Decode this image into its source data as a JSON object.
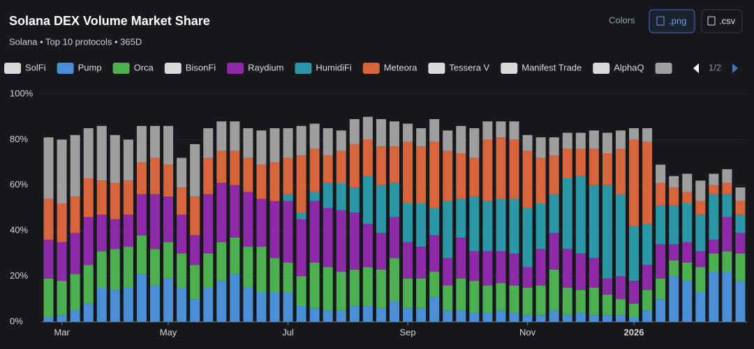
{
  "chart_data": {
    "type": "stacked_bar",
    "title": "Solana DEX Volume Market Share",
    "subtitle": "Solana • Top 10 protocols • 365D",
    "buttons": [
      "Colors",
      ".png",
      ".csv"
    ],
    "legend_page": "1/2",
    "categories": [
      null,
      "Mar",
      null,
      null,
      null,
      null,
      null,
      null,
      null,
      "May",
      null,
      null,
      null,
      null,
      null,
      null,
      null,
      null,
      "Jul",
      null,
      null,
      null,
      null,
      null,
      null,
      null,
      null,
      "Sep",
      null,
      null,
      null,
      null,
      null,
      null,
      null,
      null,
      "Nov",
      null,
      null,
      null,
      null,
      null,
      null,
      null,
      "2026",
      null,
      null,
      null,
      null,
      null,
      null,
      null,
      null
    ],
    "ylim": [
      0,
      100
    ],
    "yticks": [
      {
        "value": 0,
        "label": "0%"
      },
      {
        "value": 20,
        "label": "20%"
      },
      {
        "value": 40,
        "label": "40%"
      },
      {
        "value": 60,
        "label": "60%"
      },
      {
        "value": 80,
        "label": "80%"
      },
      {
        "value": 100,
        "label": "100%"
      }
    ],
    "grid": true,
    "series": [
      {
        "name": "SolFi",
        "color": "#d9d9d9",
        "visible": false
      },
      {
        "name": "Pump",
        "color": "#4a8fd6",
        "visible": true,
        "values": [
          2,
          3,
          5,
          8,
          15,
          14,
          15,
          21,
          16,
          19,
          15,
          10,
          15,
          18,
          21,
          15,
          13,
          13,
          13,
          7,
          6,
          5,
          5,
          7,
          7,
          6,
          9,
          6,
          6,
          11,
          5,
          5,
          4,
          4,
          5,
          4,
          3,
          3,
          5,
          3,
          4,
          3,
          3,
          3,
          2,
          5,
          10,
          20,
          18,
          13,
          22,
          22,
          18
        ]
      },
      {
        "name": "Orca",
        "color": "#4caf50",
        "visible": true,
        "values": [
          17,
          15,
          16,
          17,
          16,
          18,
          18,
          17,
          16,
          16,
          15,
          15,
          15,
          17,
          16,
          18,
          20,
          15,
          13,
          13,
          20,
          19,
          17,
          16,
          17,
          17,
          19,
          13,
          13,
          11,
          11,
          14,
          14,
          12,
          12,
          12,
          12,
          13,
          18,
          12,
          10,
          12,
          9,
          7,
          6,
          9,
          9,
          7,
          8,
          11,
          8,
          9,
          12
        ]
      },
      {
        "name": "BisonFi",
        "color": "#d9d9d9",
        "visible": false
      },
      {
        "name": "Raydium",
        "color": "#8e2aa8",
        "visible": true,
        "values": [
          17,
          17,
          18,
          21,
          16,
          13,
          14,
          18,
          24,
          20,
          17,
          13,
          26,
          26,
          23,
          24,
          21,
          25,
          27,
          25,
          27,
          26,
          27,
          25,
          19,
          16,
          18,
          16,
          14,
          16,
          12,
          18,
          13,
          15,
          14,
          14,
          9,
          16,
          16,
          17,
          16,
          13,
          7,
          10,
          10,
          11,
          15,
          7,
          9,
          7,
          6,
          15,
          9
        ]
      },
      {
        "name": "HumidiFi",
        "color": "#2a96a6",
        "visible": true,
        "values": [
          0,
          0,
          0,
          0,
          0,
          0,
          0,
          0,
          0,
          0,
          0,
          0,
          0,
          0,
          0,
          0,
          0,
          0,
          3,
          3,
          4,
          11,
          12,
          11,
          21,
          21,
          15,
          17,
          19,
          12,
          25,
          17,
          24,
          22,
          23,
          24,
          26,
          20,
          17,
          31,
          34,
          32,
          41,
          36,
          24,
          18,
          17,
          17,
          17,
          16,
          20,
          10,
          8
        ]
      },
      {
        "name": "Meteora",
        "color": "#d8643c",
        "visible": true,
        "values": [
          18,
          17,
          16,
          17,
          15,
          16,
          15,
          14,
          16,
          14,
          12,
          17,
          16,
          14,
          15,
          15,
          15,
          17,
          16,
          25,
          19,
          12,
          14,
          19,
          16,
          17,
          16,
          27,
          25,
          29,
          22,
          20,
          17,
          27,
          27,
          26,
          25,
          20,
          17,
          13,
          12,
          16,
          14,
          20,
          38,
          36,
          10,
          8,
          5,
          6,
          4,
          5,
          6
        ]
      },
      {
        "name": "Tessera V",
        "color": "#d9d9d9",
        "visible": false
      },
      {
        "name": "Manifest Trade",
        "color": "#d9d9d9",
        "visible": false
      },
      {
        "name": "AlphaQ",
        "color": "#d9d9d9",
        "visible": false
      },
      {
        "color": "#9e9e9e",
        "visible": true,
        "values": [
          27,
          28,
          27,
          22,
          24,
          21,
          18,
          16,
          14,
          17,
          13,
          23,
          13,
          13,
          13,
          13,
          15,
          15,
          13,
          13,
          11,
          12,
          9,
          11,
          10,
          12,
          11,
          8,
          8,
          10,
          9,
          12,
          13,
          8,
          7,
          8,
          7,
          9,
          8,
          7,
          7,
          8,
          9,
          8,
          5,
          6,
          8,
          5,
          8,
          9,
          5,
          6,
          6
        ]
      }
    ]
  }
}
